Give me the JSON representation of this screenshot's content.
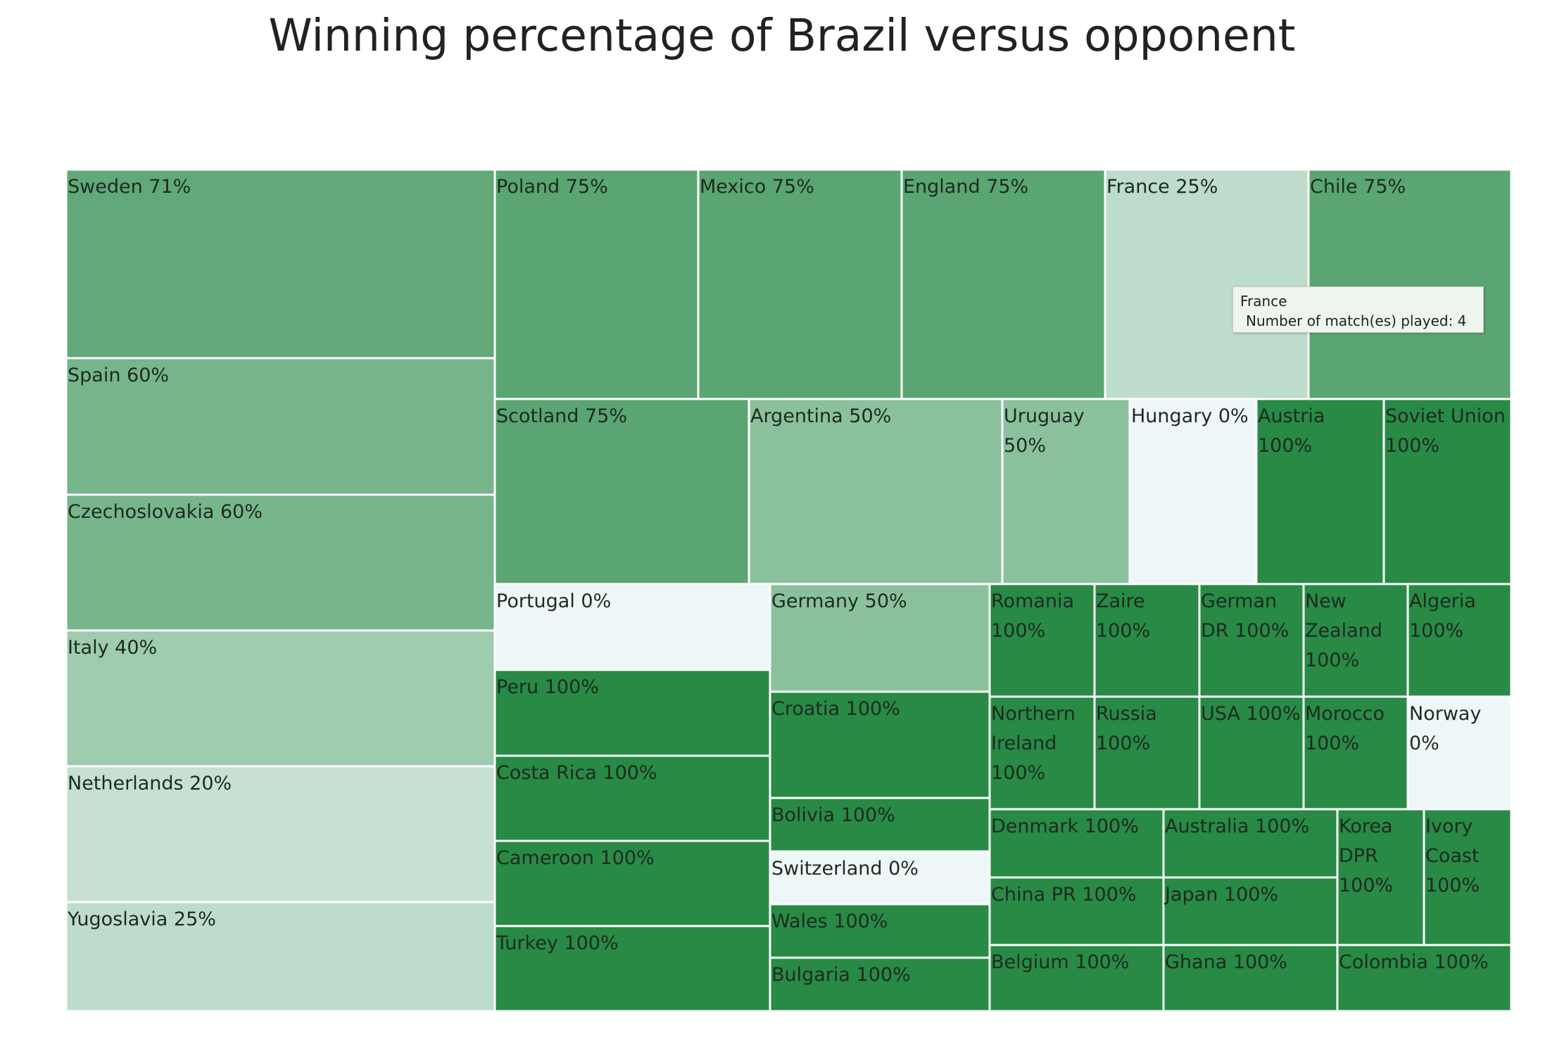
{
  "chart_data": {
    "type": "treemap",
    "title": "Winning percentage of Brazil versus opponent",
    "value_meaning": "Number of match(es) played",
    "color_meaning": "winning percentage",
    "color_scale": {
      "low": "#eef7f8",
      "mid": "#8bc09d",
      "high": "#288a45"
    },
    "items": [
      {
        "name": "Sweden",
        "win_pct": 71,
        "label": "Sweden 71%",
        "matches": 7
      },
      {
        "name": "Spain",
        "win_pct": 60,
        "label": "Spain 60%",
        "matches": 5
      },
      {
        "name": "Czechoslovakia",
        "win_pct": 60,
        "label": "Czechoslovakia 60%",
        "matches": 5
      },
      {
        "name": "Italy",
        "win_pct": 40,
        "label": "Italy 40%",
        "matches": 5
      },
      {
        "name": "Netherlands",
        "win_pct": 20,
        "label": "Netherlands 20%",
        "matches": 5
      },
      {
        "name": "Yugoslavia",
        "win_pct": 25,
        "label": "Yugoslavia 25%",
        "matches": 4
      },
      {
        "name": "Poland",
        "win_pct": 75,
        "label": "Poland 75%",
        "matches": 4
      },
      {
        "name": "Mexico",
        "win_pct": 75,
        "label": "Mexico 75%",
        "matches": 4
      },
      {
        "name": "England",
        "win_pct": 75,
        "label": "England 75%",
        "matches": 4
      },
      {
        "name": "France",
        "win_pct": 25,
        "label": "France 25%",
        "matches": 4
      },
      {
        "name": "Chile",
        "win_pct": 75,
        "label": "Chile 75%",
        "matches": 4
      },
      {
        "name": "Scotland",
        "win_pct": 75,
        "label": "Scotland 75%",
        "matches": 4
      },
      {
        "name": "Argentina",
        "win_pct": 50,
        "label": "Argentina 50%",
        "matches": 4
      },
      {
        "name": "Uruguay",
        "win_pct": 50,
        "label": "Uruguay 50%",
        "matches": 2
      },
      {
        "name": "Hungary",
        "win_pct": 0,
        "label": "Hungary 0%",
        "matches": 2
      },
      {
        "name": "Austria",
        "win_pct": 100,
        "label": "Austria 100%",
        "matches": 2
      },
      {
        "name": "Soviet Union",
        "win_pct": 100,
        "label": "Soviet Union 100%",
        "matches": 2
      },
      {
        "name": "Portugal",
        "win_pct": 0,
        "label": "Portugal 0%",
        "matches": 1
      },
      {
        "name": "Peru",
        "win_pct": 100,
        "label": "Peru 100%",
        "matches": 1
      },
      {
        "name": "Costa Rica",
        "win_pct": 100,
        "label": "Costa Rica 100%",
        "matches": 1
      },
      {
        "name": "Cameroon",
        "win_pct": 100,
        "label": "Cameroon 100%",
        "matches": 1
      },
      {
        "name": "Turkey",
        "win_pct": 100,
        "label": "Turkey 100%",
        "matches": 1
      },
      {
        "name": "Germany",
        "win_pct": 50,
        "label": "Germany 50%",
        "matches": 2
      },
      {
        "name": "Croatia",
        "win_pct": 100,
        "label": "Croatia 100%",
        "matches": 2
      },
      {
        "name": "Bolivia",
        "win_pct": 100,
        "label": "Bolivia 100%",
        "matches": 1
      },
      {
        "name": "Switzerland",
        "win_pct": 0,
        "label": "Switzerland 0%",
        "matches": 1
      },
      {
        "name": "Wales",
        "win_pct": 100,
        "label": "Wales 100%",
        "matches": 1
      },
      {
        "name": "Bulgaria",
        "win_pct": 100,
        "label": "Bulgaria 100%",
        "matches": 1
      },
      {
        "name": "Romania",
        "win_pct": 100,
        "label": "Romania 100%",
        "matches": 1
      },
      {
        "name": "Zaire",
        "win_pct": 100,
        "label": "Zaire 100%",
        "matches": 1
      },
      {
        "name": "German DR",
        "win_pct": 100,
        "label": "German DR 100%",
        "matches": 1
      },
      {
        "name": "New Zealand",
        "win_pct": 100,
        "label": "New Zealand 100%",
        "matches": 1
      },
      {
        "name": "Algeria",
        "win_pct": 100,
        "label": "Algeria 100%",
        "matches": 1
      },
      {
        "name": "Northern Ireland",
        "win_pct": 100,
        "label": "Northern Ireland 100%",
        "matches": 1
      },
      {
        "name": "Russia",
        "win_pct": 100,
        "label": "Russia 100%",
        "matches": 1
      },
      {
        "name": "USA",
        "win_pct": 100,
        "label": "USA 100%",
        "matches": 1
      },
      {
        "name": "Morocco",
        "win_pct": 100,
        "label": "Morocco 100%",
        "matches": 1
      },
      {
        "name": "Norway",
        "win_pct": 0,
        "label": "Norway 0%",
        "matches": 1
      },
      {
        "name": "Denmark",
        "win_pct": 100,
        "label": "Denmark 100%",
        "matches": 1
      },
      {
        "name": "Australia",
        "win_pct": 100,
        "label": "Australia 100%",
        "matches": 1
      },
      {
        "name": "Korea DPR",
        "win_pct": 100,
        "label": "Korea DPR 100%",
        "matches": 1
      },
      {
        "name": "Ivory Coast",
        "win_pct": 100,
        "label": "Ivory Coast 100%",
        "matches": 1
      },
      {
        "name": "China PR",
        "win_pct": 100,
        "label": "China PR 100%",
        "matches": 1
      },
      {
        "name": "Japan",
        "win_pct": 100,
        "label": "Japan 100%",
        "matches": 1
      },
      {
        "name": "Belgium",
        "win_pct": 100,
        "label": "Belgium 100%",
        "matches": 1
      },
      {
        "name": "Ghana",
        "win_pct": 100,
        "label": "Ghana 100%",
        "matches": 1
      },
      {
        "name": "Colombia",
        "win_pct": 100,
        "label": "Colombia 100%",
        "matches": 1
      }
    ]
  },
  "tooltip": {
    "country": "France",
    "detail": "Number of match(es) played: 4"
  }
}
